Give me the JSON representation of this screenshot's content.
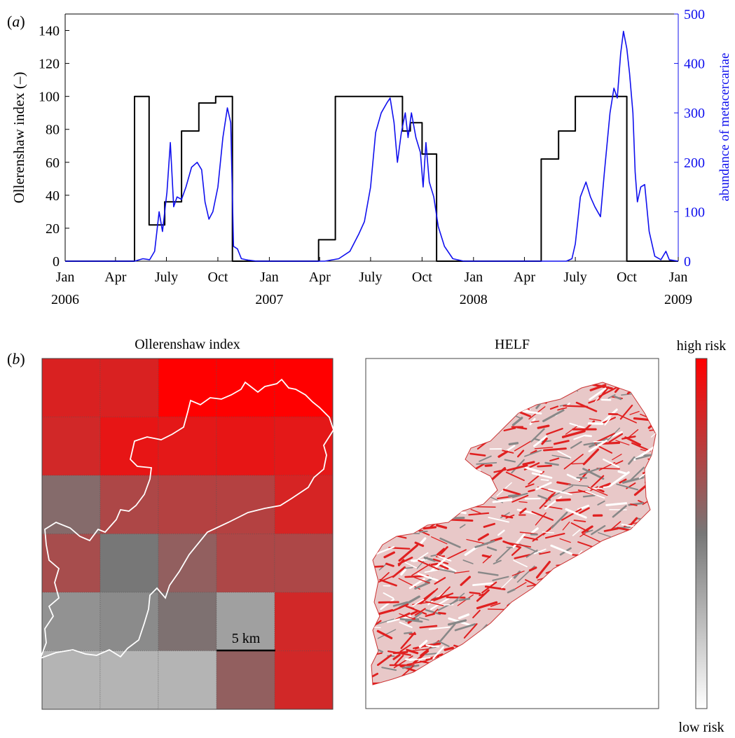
{
  "panel_a": {
    "tag": "a",
    "chart_data": {
      "type": "line",
      "xlabel": "",
      "ylabel_left": "Ollerenshaw index (–)",
      "ylabel_right": "abundance of metacercariae",
      "x_range": [
        "2006-01-01",
        "2009-01-01"
      ],
      "ylim_left": [
        0,
        150
      ],
      "ylim_right": [
        0,
        500
      ],
      "yticks_left": [
        0,
        20,
        40,
        60,
        80,
        100,
        120,
        140
      ],
      "yticks_right": [
        0,
        100,
        200,
        300,
        400,
        500
      ],
      "x_ticks": [
        {
          "date": "2006-01-01",
          "label": "Jan",
          "year": "2006"
        },
        {
          "date": "2006-04-01",
          "label": "Apr",
          "year": ""
        },
        {
          "date": "2006-07-01",
          "label": "July",
          "year": ""
        },
        {
          "date": "2006-10-01",
          "label": "Oct",
          "year": ""
        },
        {
          "date": "2007-01-01",
          "label": "Jan",
          "year": "2007"
        },
        {
          "date": "2007-04-01",
          "label": "Apr",
          "year": ""
        },
        {
          "date": "2007-07-01",
          "label": "July",
          "year": ""
        },
        {
          "date": "2007-10-01",
          "label": "Oct",
          "year": ""
        },
        {
          "date": "2008-01-01",
          "label": "Jan",
          "year": "2008"
        },
        {
          "date": "2008-04-01",
          "label": "Apr",
          "year": ""
        },
        {
          "date": "2008-07-01",
          "label": "July",
          "year": ""
        },
        {
          "date": "2008-10-01",
          "label": "Oct",
          "year": ""
        },
        {
          "date": "2009-01-01",
          "label": "Jan",
          "year": "2009"
        }
      ],
      "series": [
        {
          "axis": "left",
          "color": "#000000",
          "step": true,
          "points": [
            [
              "2006-01-01",
              0
            ],
            [
              "2006-05-05",
              0
            ],
            [
              "2006-05-05",
              100
            ],
            [
              "2006-05-31",
              100
            ],
            [
              "2006-05-31",
              22
            ],
            [
              "2006-06-28",
              22
            ],
            [
              "2006-06-28",
              36
            ],
            [
              "2006-07-28",
              36
            ],
            [
              "2006-07-28",
              79
            ],
            [
              "2006-08-28",
              79
            ],
            [
              "2006-08-28",
              96
            ],
            [
              "2006-09-27",
              96
            ],
            [
              "2006-09-27",
              100
            ],
            [
              "2006-10-27",
              100
            ],
            [
              "2006-10-27",
              0
            ],
            [
              "2007-03-30",
              0
            ],
            [
              "2007-03-30",
              13
            ],
            [
              "2007-04-29",
              13
            ],
            [
              "2007-04-29",
              100
            ],
            [
              "2007-08-27",
              100
            ],
            [
              "2007-08-27",
              79
            ],
            [
              "2007-09-10",
              79
            ],
            [
              "2007-09-10",
              84
            ],
            [
              "2007-10-01",
              84
            ],
            [
              "2007-10-01",
              65
            ],
            [
              "2007-10-27",
              65
            ],
            [
              "2007-10-27",
              0
            ],
            [
              "2008-05-01",
              0
            ],
            [
              "2008-05-01",
              62
            ],
            [
              "2008-06-01",
              62
            ],
            [
              "2008-06-01",
              79
            ],
            [
              "2008-07-01",
              79
            ],
            [
              "2008-07-01",
              100
            ],
            [
              "2008-10-01",
              100
            ],
            [
              "2008-10-01",
              0
            ],
            [
              "2009-01-01",
              0
            ]
          ]
        },
        {
          "axis": "right",
          "color": "#1010ee",
          "step": false,
          "points": [
            [
              "2006-01-01",
              0
            ],
            [
              "2006-05-05",
              0
            ],
            [
              "2006-05-20",
              5
            ],
            [
              "2006-06-01",
              3
            ],
            [
              "2006-06-10",
              20
            ],
            [
              "2006-06-18",
              100
            ],
            [
              "2006-06-24",
              60
            ],
            [
              "2006-07-02",
              140
            ],
            [
              "2006-07-08",
              240
            ],
            [
              "2006-07-14",
              110
            ],
            [
              "2006-07-20",
              130
            ],
            [
              "2006-07-28",
              125
            ],
            [
              "2006-08-05",
              150
            ],
            [
              "2006-08-15",
              190
            ],
            [
              "2006-08-25",
              200
            ],
            [
              "2006-09-02",
              185
            ],
            [
              "2006-09-08",
              120
            ],
            [
              "2006-09-15",
              85
            ],
            [
              "2006-09-22",
              100
            ],
            [
              "2006-10-01",
              150
            ],
            [
              "2006-10-10",
              250
            ],
            [
              "2006-10-18",
              310
            ],
            [
              "2006-10-24",
              280
            ],
            [
              "2006-10-29",
              30
            ],
            [
              "2006-11-05",
              25
            ],
            [
              "2006-11-12",
              5
            ],
            [
              "2006-11-25",
              2
            ],
            [
              "2006-12-10",
              0
            ],
            [
              "2007-04-10",
              0
            ],
            [
              "2007-05-05",
              5
            ],
            [
              "2007-05-25",
              20
            ],
            [
              "2007-06-10",
              55
            ],
            [
              "2007-06-20",
              80
            ],
            [
              "2007-07-01",
              150
            ],
            [
              "2007-07-10",
              260
            ],
            [
              "2007-07-20",
              300
            ],
            [
              "2007-07-30",
              320
            ],
            [
              "2007-08-05",
              330
            ],
            [
              "2007-08-12",
              280
            ],
            [
              "2007-08-18",
              200
            ],
            [
              "2007-08-25",
              260
            ],
            [
              "2007-09-01",
              300
            ],
            [
              "2007-09-06",
              250
            ],
            [
              "2007-09-12",
              300
            ],
            [
              "2007-09-20",
              250
            ],
            [
              "2007-09-28",
              220
            ],
            [
              "2007-10-03",
              150
            ],
            [
              "2007-10-08",
              240
            ],
            [
              "2007-10-14",
              160
            ],
            [
              "2007-10-22",
              130
            ],
            [
              "2007-10-30",
              70
            ],
            [
              "2007-11-10",
              30
            ],
            [
              "2007-11-25",
              5
            ],
            [
              "2007-12-15",
              0
            ],
            [
              "2008-01-05",
              0
            ],
            [
              "2008-06-15",
              0
            ],
            [
              "2008-06-25",
              5
            ],
            [
              "2008-07-01",
              35
            ],
            [
              "2008-07-10",
              130
            ],
            [
              "2008-07-20",
              160
            ],
            [
              "2008-07-28",
              130
            ],
            [
              "2008-08-05",
              110
            ],
            [
              "2008-08-15",
              90
            ],
            [
              "2008-08-22",
              180
            ],
            [
              "2008-09-01",
              300
            ],
            [
              "2008-09-08",
              350
            ],
            [
              "2008-09-14",
              330
            ],
            [
              "2008-09-20",
              420
            ],
            [
              "2008-09-25",
              465
            ],
            [
              "2008-10-01",
              430
            ],
            [
              "2008-10-06",
              380
            ],
            [
              "2008-10-12",
              300
            ],
            [
              "2008-10-16",
              180
            ],
            [
              "2008-10-20",
              120
            ],
            [
              "2008-10-26",
              150
            ],
            [
              "2008-11-02",
              155
            ],
            [
              "2008-11-10",
              60
            ],
            [
              "2008-11-20",
              10
            ],
            [
              "2008-12-01",
              3
            ],
            [
              "2008-12-10",
              20
            ],
            [
              "2008-12-16",
              3
            ],
            [
              "2009-01-01",
              0
            ]
          ]
        }
      ]
    }
  },
  "panel_b": {
    "tag": "b",
    "left_title": "Ollerenshaw index",
    "right_title": "HELF",
    "scalebar_label": "5 km",
    "colorbar_high": "high risk",
    "colorbar_low": "low risk",
    "grid_risk": [
      [
        0.72,
        0.72,
        1.0,
        1.0,
        1.0
      ],
      [
        0.66,
        0.82,
        0.8,
        0.82,
        0.8
      ],
      [
        0.1,
        0.4,
        0.45,
        0.45,
        0.7
      ],
      [
        0.35,
        0.0,
        0.2,
        0.4,
        0.4
      ],
      [
        -0.2,
        -0.15,
        0.05,
        -0.3,
        0.66
      ],
      [
        -0.45,
        -0.45,
        -0.45,
        0.2,
        0.66
      ]
    ],
    "colors": {
      "red": "#ff0000",
      "grey": "#777777",
      "white": "#ffffff"
    }
  }
}
